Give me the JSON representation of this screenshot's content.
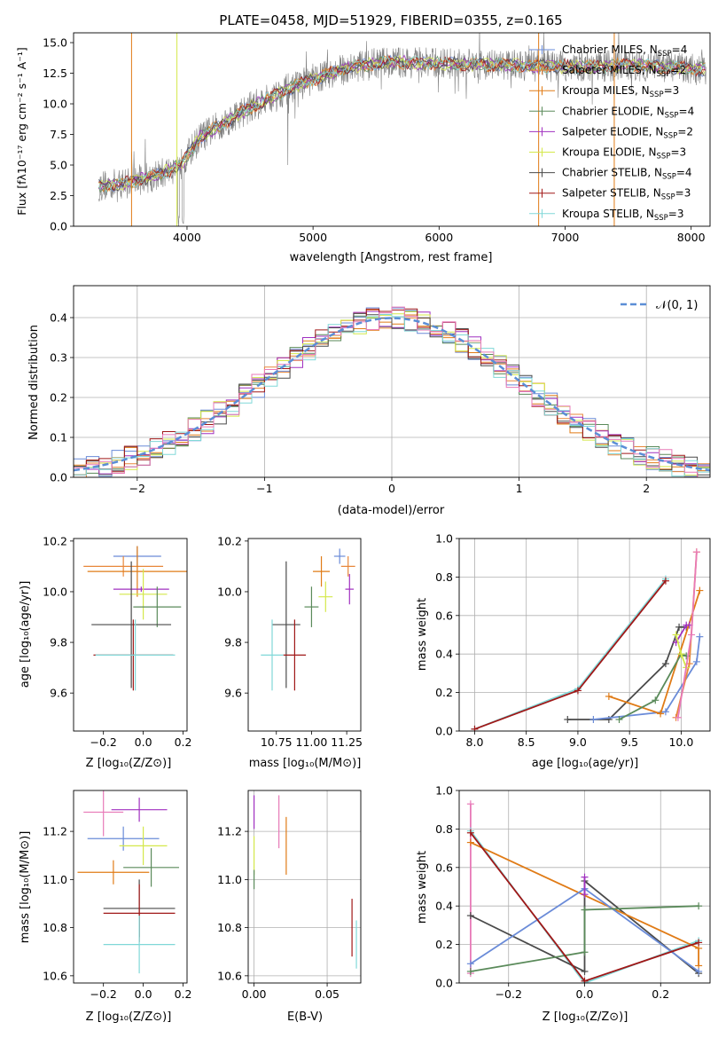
{
  "chart_data": [
    {
      "id": "spectrum",
      "type": "line",
      "title": "PLATE=0458, MJD=51929, FIBERID=0355, z=0.165",
      "xlabel": "wavelength [Angstrom, rest frame]",
      "ylabel": "Flux [fλ10⁻¹⁷ erg cm⁻² s⁻¹ A⁻¹]",
      "xlim": [
        3100,
        8150
      ],
      "ylim": [
        0,
        15.8
      ],
      "xticks": [
        "4000",
        "5000",
        "6000",
        "7000",
        "8000"
      ],
      "yticks": [
        "0.0",
        "2.5",
        "5.0",
        "7.5",
        "10.0",
        "12.5",
        "15.0"
      ],
      "legend_position": "top-right",
      "series": [
        {
          "name": "Chabrier MILES, N_SSP=4",
          "label_main": "Chabrier MILES, N",
          "label_sub": "SSP",
          "label_tail": "=4",
          "color": "#6a8bd8"
        },
        {
          "name": "Salpeter MILES, N_SSP=2",
          "label_main": "Salpeter MILES, N",
          "label_sub": "SSP",
          "label_tail": "=2",
          "color": "#e8873a"
        },
        {
          "name": "Kroupa MILES, N_SSP=3",
          "label_main": "Kroupa MILES, N",
          "label_sub": "SSP",
          "label_tail": "=3",
          "color": "#e07b16"
        },
        {
          "name": "Chabrier ELODIE, N_SSP=4",
          "label_main": "Chabrier ELODIE, N",
          "label_sub": "SSP",
          "label_tail": "=4",
          "color": "#5a8a5a"
        },
        {
          "name": "Salpeter ELODIE, N_SSP=2",
          "label_main": "Salpeter ELODIE, N",
          "label_sub": "SSP",
          "label_tail": "=2",
          "color": "#a030c0"
        },
        {
          "name": "Kroupa ELODIE, N_SSP=3",
          "label_main": "Kroupa ELODIE, N",
          "label_sub": "SSP",
          "label_tail": "=3",
          "color": "#d4e84a"
        },
        {
          "name": "Chabrier STELIB, N_SSP=4",
          "label_main": "Chabrier STELIB, N",
          "label_sub": "SSP",
          "label_tail": "=4",
          "color": "#4a4a4a"
        },
        {
          "name": "Salpeter STELIB, N_SSP=3",
          "label_main": "Salpeter STELIB, N",
          "label_sub": "SSP",
          "label_tail": "=3",
          "color": "#a01818"
        },
        {
          "name": "Kroupa STELIB, N_SSP=3",
          "label_main": "Kroupa STELIB, N",
          "label_sub": "SSP",
          "label_tail": "=3",
          "color": "#80d8d8"
        }
      ],
      "data_color": "#808080",
      "continuum_x": [
        3300,
        3500,
        3800,
        3950,
        4100,
        4300,
        4500,
        4800,
        5000,
        5300,
        5600,
        6000,
        6400,
        6800,
        7200,
        7500,
        7800,
        8100
      ],
      "continuum_y": [
        3.3,
        3.5,
        4.3,
        5.0,
        7.2,
        8.5,
        9.7,
        11.2,
        12.0,
        13.0,
        13.4,
        13.3,
        13.2,
        13.1,
        13.0,
        13.2,
        13.0,
        12.8
      ]
    },
    {
      "id": "residuals",
      "type": "histogram",
      "xlabel": "(data-model)/error",
      "ylabel": "Normed distribution",
      "xlim": [
        -2.5,
        2.5
      ],
      "ylim": [
        0,
        0.48
      ],
      "xticks": [
        "−2",
        "−1",
        "0",
        "1",
        "2"
      ],
      "yticks": [
        "0.0",
        "0.1",
        "0.2",
        "0.3",
        "0.4"
      ],
      "grid": true,
      "legend_position": "top-right",
      "gaussian_label": "𝒩(0, 1)",
      "gaussian_color": "#5b8ed6",
      "bin_width": 0.1
    },
    {
      "id": "age-vs-z",
      "type": "errorbar",
      "xlabel": "Z [log₁₀(Z/Z⊙)]",
      "ylabel": "age  [log₁₀(age/yr)]",
      "xlim": [
        -0.35,
        0.22
      ],
      "ylim": [
        9.45,
        10.21
      ],
      "xticks": [
        "−0.2",
        "0.0",
        "0.2"
      ],
      "yticks": [
        "9.6",
        "9.8",
        "10.0",
        "10.2"
      ],
      "points": [
        {
          "color": "#6a8bd8",
          "x": -0.03,
          "xerr": 0.12,
          "y": 10.14,
          "yerr": 0.04
        },
        {
          "color": "#e8873a",
          "x": -0.1,
          "xerr": 0.2,
          "y": 10.1,
          "yerr": 0.04
        },
        {
          "color": "#e07b16",
          "x": -0.03,
          "xerr": 0.25,
          "y": 10.08,
          "yerr": 0.1
        },
        {
          "color": "#a030c0",
          "x": -0.01,
          "xerr": 0.14,
          "y": 10.01,
          "yerr": 0.01
        },
        {
          "color": "#d4e84a",
          "x": 0.0,
          "xerr": 0.12,
          "y": 9.99,
          "yerr": 0.1
        },
        {
          "color": "#5a8a5a",
          "x": 0.07,
          "xerr": 0.12,
          "y": 9.94,
          "yerr": 0.08
        },
        {
          "color": "#4a4a4a",
          "x": -0.06,
          "xerr": 0.2,
          "y": 9.87,
          "yerr": 0.25
        },
        {
          "color": "#a01818",
          "x": -0.05,
          "xerr": 0.2,
          "y": 9.75,
          "yerr": 0.14
        },
        {
          "color": "#80d8d8",
          "x": -0.04,
          "xerr": 0.2,
          "y": 9.75,
          "yerr": 0.14
        }
      ]
    },
    {
      "id": "age-vs-mass",
      "type": "errorbar",
      "xlabel": "mass [log₁₀(M/M⊙)]",
      "ylabel": "",
      "xlim": [
        10.55,
        11.35
      ],
      "ylim": [
        9.45,
        10.21
      ],
      "xticks": [
        "10.75",
        "11.00",
        "11.25"
      ],
      "yticks": [
        "9.6",
        "9.8",
        "10.0",
        "10.2"
      ],
      "points": [
        {
          "color": "#6a8bd8",
          "x": 11.2,
          "xerr": 0.04,
          "y": 10.14,
          "yerr": 0.03
        },
        {
          "color": "#e8873a",
          "x": 11.26,
          "xerr": 0.05,
          "y": 10.1,
          "yerr": 0.04
        },
        {
          "color": "#e07b16",
          "x": 11.07,
          "xerr": 0.06,
          "y": 10.08,
          "yerr": 0.06
        },
        {
          "color": "#a030c0",
          "x": 11.27,
          "xerr": 0.03,
          "y": 10.01,
          "yerr": 0.06
        },
        {
          "color": "#d4e84a",
          "x": 11.1,
          "xerr": 0.05,
          "y": 9.98,
          "yerr": 0.06
        },
        {
          "color": "#5a8a5a",
          "x": 11.0,
          "xerr": 0.05,
          "y": 9.94,
          "yerr": 0.08
        },
        {
          "color": "#4a4a4a",
          "x": 10.82,
          "xerr": 0.1,
          "y": 9.87,
          "yerr": 0.25
        },
        {
          "color": "#a01818",
          "x": 10.88,
          "xerr": 0.08,
          "y": 9.75,
          "yerr": 0.14
        },
        {
          "color": "#80d8d8",
          "x": 10.72,
          "xerr": 0.08,
          "y": 9.75,
          "yerr": 0.14
        }
      ]
    },
    {
      "id": "massweight-vs-age",
      "type": "line",
      "xlabel": "age  [log₁₀(age/yr)]",
      "ylabel": "mass weight",
      "xlim": [
        7.85,
        10.28
      ],
      "ylim": [
        0,
        1.0
      ],
      "xticks": [
        "8.0",
        "8.5",
        "9.0",
        "9.5",
        "10.0"
      ],
      "yticks": [
        "0.0",
        "0.2",
        "0.4",
        "0.6",
        "0.8",
        "1.0"
      ],
      "grid": true,
      "series": [
        {
          "color": "#80d8d8",
          "x": [
            8.0,
            9.0,
            9.85
          ],
          "y": [
            0.01,
            0.22,
            0.79
          ]
        },
        {
          "color": "#a01818",
          "x": [
            8.0,
            9.0,
            9.85
          ],
          "y": [
            0.01,
            0.21,
            0.78
          ]
        },
        {
          "color": "#4a4a4a",
          "x": [
            8.9,
            9.3,
            9.85,
            9.98,
            10.05
          ],
          "y": [
            0.06,
            0.06,
            0.35,
            0.54,
            0.54
          ]
        },
        {
          "color": "#6a8bd8",
          "x": [
            9.15,
            9.85,
            10.15,
            10.18
          ],
          "y": [
            0.06,
            0.1,
            0.36,
            0.49
          ]
        },
        {
          "color": "#e07b16",
          "x": [
            9.3,
            9.8,
            10.18
          ],
          "y": [
            0.18,
            0.09,
            0.73
          ]
        },
        {
          "color": "#e8873a",
          "x": [
            9.95,
            10.08,
            10.15
          ],
          "y": [
            0.07,
            0.35,
            0.93
          ]
        },
        {
          "color": "#5a8a5a",
          "x": [
            9.4,
            9.75,
            10.0,
            10.05
          ],
          "y": [
            0.06,
            0.16,
            0.4,
            0.39
          ]
        },
        {
          "color": "#a030c0",
          "x": [
            9.95,
            10.05,
            10.08
          ],
          "y": [
            0.46,
            0.55,
            0.55
          ]
        },
        {
          "color": "#d4e84a",
          "x": [
            9.95,
            10.0,
            10.05
          ],
          "y": [
            0.5,
            0.4,
            0.33
          ]
        },
        {
          "color": "#e87ab8",
          "x": [
            9.97,
            10.1,
            10.15
          ],
          "y": [
            0.07,
            0.5,
            0.93
          ]
        }
      ]
    },
    {
      "id": "mass-vs-z",
      "type": "errorbar",
      "xlabel": "Z [log₁₀(Z/Z⊙)]",
      "ylabel": "mass [log₁₀(M/M⊙)]",
      "xlim": [
        -0.35,
        0.22
      ],
      "ylim": [
        10.57,
        11.37
      ],
      "xticks": [
        "−0.2",
        "0.0",
        "0.2"
      ],
      "yticks": [
        "10.6",
        "10.8",
        "11.0",
        "11.2"
      ],
      "points": [
        {
          "color": "#e87ab8",
          "x": -0.2,
          "xerr": 0.1,
          "y": 11.28,
          "yerr": 0.1
        },
        {
          "color": "#a030c0",
          "x": -0.02,
          "xerr": 0.14,
          "y": 11.29,
          "yerr": 0.05
        },
        {
          "color": "#6a8bd8",
          "x": -0.1,
          "xerr": 0.18,
          "y": 11.17,
          "yerr": 0.05
        },
        {
          "color": "#d4e84a",
          "x": 0.0,
          "xerr": 0.12,
          "y": 11.14,
          "yerr": 0.08
        },
        {
          "color": "#5a8a5a",
          "x": 0.04,
          "xerr": 0.14,
          "y": 11.05,
          "yerr": 0.08
        },
        {
          "color": "#e07b16",
          "x": -0.15,
          "xerr": 0.18,
          "y": 11.03,
          "yerr": 0.05
        },
        {
          "color": "#4a4a4a",
          "x": -0.02,
          "xerr": 0.18,
          "y": 10.88,
          "yerr": 0.12
        },
        {
          "color": "#a01818",
          "x": -0.02,
          "xerr": 0.18,
          "y": 10.86,
          "yerr": 0.12
        },
        {
          "color": "#80d8d8",
          "x": -0.02,
          "xerr": 0.18,
          "y": 10.73,
          "yerr": 0.12
        }
      ]
    },
    {
      "id": "mass-vs-ebv",
      "type": "errorbar",
      "xlabel": "E(B-V)",
      "ylabel": "",
      "xlim": [
        -0.004,
        0.073
      ],
      "ylim": [
        10.57,
        11.37
      ],
      "xticks": [
        "0.00",
        "0.05"
      ],
      "yticks": [
        "10.6",
        "10.8",
        "11.0",
        "11.2"
      ],
      "grid": true,
      "points": [
        {
          "color": "#a030c0",
          "x": 0.0,
          "xerr": 0.0,
          "y": 11.28,
          "yerr": 0.07
        },
        {
          "color": "#e87ab8",
          "x": 0.017,
          "xerr": 0.0,
          "y": 11.24,
          "yerr": 0.11
        },
        {
          "color": "#e07b16",
          "x": 0.022,
          "xerr": 0.0,
          "y": 11.14,
          "yerr": 0.12
        },
        {
          "color": "#d4e84a",
          "x": 0.0,
          "xerr": 0.0,
          "y": 11.1,
          "yerr": 0.08
        },
        {
          "color": "#5a8a5a",
          "x": 0.0,
          "xerr": 0.0,
          "y": 11.0,
          "yerr": 0.04
        },
        {
          "color": "#a01818",
          "x": 0.067,
          "xerr": 0.0,
          "y": 10.8,
          "yerr": 0.12
        },
        {
          "color": "#80d8d8",
          "x": 0.07,
          "xerr": 0.0,
          "y": 10.73,
          "yerr": 0.1
        }
      ]
    },
    {
      "id": "massweight-vs-z",
      "type": "line",
      "xlabel": "Z [log₁₀(Z/Z⊙)]",
      "ylabel": "mass weight",
      "xlim": [
        -0.33,
        0.33
      ],
      "ylim": [
        0,
        1.0
      ],
      "xticks": [
        "−0.2",
        "0.0",
        "0.2"
      ],
      "yticks": [
        "0.0",
        "0.2",
        "0.4",
        "0.6",
        "0.8",
        "1.0"
      ],
      "grid": true,
      "series": [
        {
          "color": "#e87ab8",
          "x": [
            -0.3,
            -0.3
          ],
          "y": [
            0.93,
            0.05
          ]
        },
        {
          "color": "#80d8d8",
          "x": [
            -0.3,
            0.0,
            0.3
          ],
          "y": [
            0.79,
            0.0,
            0.22
          ]
        },
        {
          "color": "#4a4a4a",
          "x": [
            -0.3,
            0.0,
            0.0,
            0.3
          ],
          "y": [
            0.35,
            0.06,
            0.53,
            0.05
          ]
        },
        {
          "color": "#e07b16",
          "x": [
            -0.3,
            0.3,
            0.3
          ],
          "y": [
            0.73,
            0.18,
            0.09
          ]
        },
        {
          "color": "#6a8bd8",
          "x": [
            -0.3,
            0.0,
            0.3
          ],
          "y": [
            0.1,
            0.49,
            0.06
          ]
        },
        {
          "color": "#5a8a5a",
          "x": [
            -0.3,
            0.0,
            0.0,
            0.3
          ],
          "y": [
            0.06,
            0.16,
            0.38,
            0.4
          ]
        },
        {
          "color": "#a030c0",
          "x": [
            0.0,
            0.0
          ],
          "y": [
            0.55,
            0.46
          ]
        },
        {
          "color": "#a01818",
          "x": [
            -0.3,
            0.0,
            0.3
          ],
          "y": [
            0.78,
            0.01,
            0.21
          ]
        }
      ]
    }
  ]
}
